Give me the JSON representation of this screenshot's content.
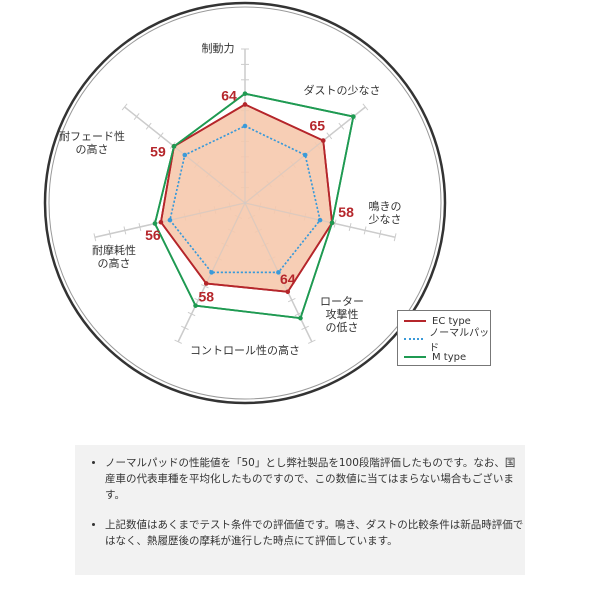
{
  "chart_data": {
    "type": "radar",
    "axes": [
      "制動力",
      "ダストの少なさ",
      "鳴きの少なさ",
      "ローター攻撃性の低さ",
      "コントロール性の高さ",
      "耐摩耗性の高さ",
      "耐フェード性の高さ"
    ],
    "axis_labels_display": [
      [
        "制動力"
      ],
      [
        "ダストの少なさ"
      ],
      [
        "鳴きの",
        "少なさ"
      ],
      [
        "ローター",
        "攻撃性",
        "の低さ"
      ],
      [
        "コントロール性の高さ"
      ],
      [
        "耐摩耗性",
        "の高さ"
      ],
      [
        "耐フェード性",
        "の高さ"
      ]
    ],
    "range": [
      0,
      100
    ],
    "series": [
      {
        "name": "EC type",
        "values": [
          64,
          65,
          58,
          64,
          58,
          56,
          59
        ],
        "color": "#b5262b",
        "fill": "#f6c9ad",
        "labeled": true
      },
      {
        "name": "ノーマルパッド",
        "values": [
          50,
          50,
          50,
          50,
          50,
          50,
          50
        ],
        "color": "#3a9ad9",
        "dashed": true
      },
      {
        "name": "M type",
        "values": [
          71,
          90,
          58,
          83,
          74,
          60,
          59
        ],
        "color": "#1f9a52"
      }
    ],
    "legend": "bottom-right"
  },
  "notes": [
    "ノーマルパッドの性能値を「50」とし弊社製品を100段階評価したものです。なお、国産車の代表車種を平均化したものですので、この数値に当てはまらない場合もございます。",
    "上記数値はあくまでテスト条件での評価値です。鳴き、ダストの比較条件は新品時評価ではなく、熱履歴後の摩耗が進行した時点にて評価しています。"
  ]
}
